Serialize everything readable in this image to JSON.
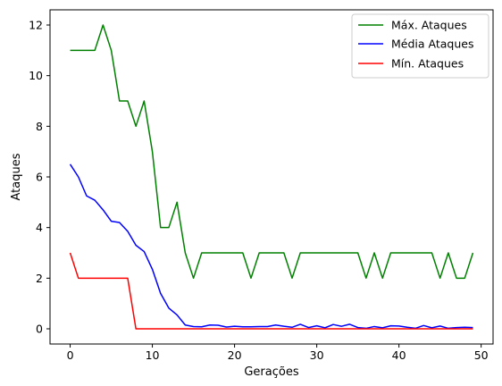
{
  "chart_data": {
    "type": "line",
    "title": "",
    "xlabel": "Gerações",
    "ylabel": "Ataques",
    "xlim": [
      -2.45,
      51.45
    ],
    "ylim": [
      -0.6,
      12.6
    ],
    "xticks": [
      0,
      10,
      20,
      30,
      40,
      50
    ],
    "yticks": [
      0,
      2,
      4,
      6,
      8,
      10,
      12
    ],
    "grid": false,
    "legend_position": "top-right",
    "x": [
      0,
      1,
      2,
      3,
      4,
      5,
      6,
      7,
      8,
      9,
      10,
      11,
      12,
      13,
      14,
      15,
      16,
      17,
      18,
      19,
      20,
      21,
      22,
      23,
      24,
      25,
      26,
      27,
      28,
      29,
      30,
      31,
      32,
      33,
      34,
      35,
      36,
      37,
      38,
      39,
      40,
      41,
      42,
      43,
      44,
      45,
      46,
      47,
      48,
      49
    ],
    "series": [
      {
        "name": "Máx. Ataques",
        "color": "#008000",
        "values": [
          11,
          11,
          11,
          11,
          12,
          11,
          9,
          9,
          8,
          9,
          7,
          4,
          4,
          5,
          3,
          2,
          3,
          3,
          3,
          3,
          3,
          3,
          2,
          3,
          3,
          3,
          3,
          2,
          3,
          3,
          3,
          3,
          3,
          3,
          3,
          3,
          2,
          3,
          2,
          3,
          3,
          3,
          3,
          3,
          3,
          2,
          3,
          2,
          2,
          3
        ]
      },
      {
        "name": "Média Ataques",
        "color": "#0000ff",
        "values": [
          6.5,
          6.0,
          5.25,
          5.08,
          4.7,
          4.25,
          4.2,
          3.85,
          3.3,
          3.05,
          2.35,
          1.4,
          0.82,
          0.55,
          0.15,
          0.09,
          0.08,
          0.15,
          0.14,
          0.07,
          0.1,
          0.08,
          0.08,
          0.09,
          0.09,
          0.15,
          0.1,
          0.06,
          0.18,
          0.05,
          0.12,
          0.04,
          0.17,
          0.1,
          0.18,
          0.05,
          0.02,
          0.09,
          0.04,
          0.12,
          0.11,
          0.06,
          0.02,
          0.13,
          0.04,
          0.11,
          0.02,
          0.05,
          0.06,
          0.05
        ]
      },
      {
        "name": "Mín. Ataques",
        "color": "#ff0000",
        "values": [
          3,
          2,
          2,
          2,
          2,
          2,
          2,
          2,
          0,
          0,
          0,
          0,
          0,
          0,
          0,
          0,
          0,
          0,
          0,
          0,
          0,
          0,
          0,
          0,
          0,
          0,
          0,
          0,
          0,
          0,
          0,
          0,
          0,
          0,
          0,
          0,
          0,
          0,
          0,
          0,
          0,
          0,
          0,
          0,
          0,
          0,
          0,
          0,
          0,
          0
        ]
      }
    ]
  }
}
